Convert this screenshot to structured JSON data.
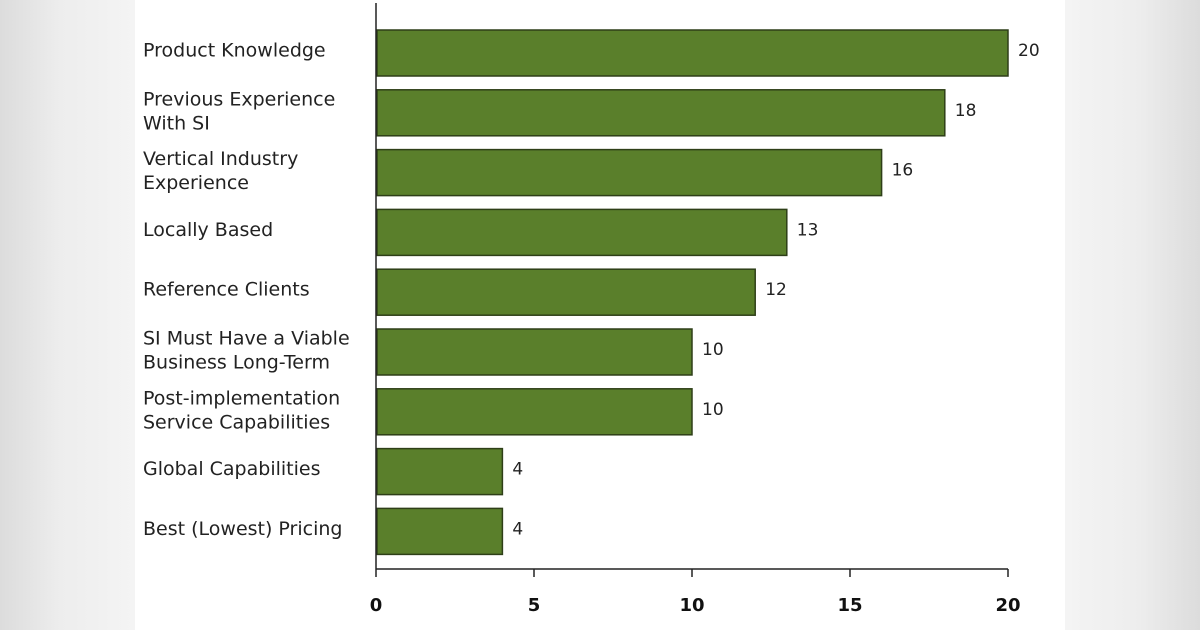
{
  "chart_data": {
    "type": "bar",
    "orientation": "horizontal",
    "title": "",
    "xlabel": "",
    "ylabel": "",
    "categories": [
      [
        "Product Knowledge"
      ],
      [
        "Previous Experience",
        "With SI"
      ],
      [
        "Vertical Industry",
        "Experience"
      ],
      [
        "Locally Based"
      ],
      [
        "Reference Clients"
      ],
      [
        "SI Must Have a Viable",
        "Business Long-Term"
      ],
      [
        "Post-implementation",
        "Service Capabilities"
      ],
      [
        "Global Capabilities"
      ],
      [
        "Best (Lowest) Pricing"
      ]
    ],
    "values": [
      20,
      18,
      16,
      13,
      12,
      10,
      10,
      4,
      4
    ],
    "data_labels": [
      "20",
      "18",
      "16",
      "13",
      "12",
      "10",
      "10",
      "4",
      "4"
    ],
    "xlim": [
      0,
      20
    ],
    "xticks": [
      0,
      5,
      10,
      15,
      20
    ],
    "xtick_labels": [
      "0",
      "5",
      "10",
      "15",
      "20"
    ],
    "bar_color": "#5a7f2b",
    "bar_edge_color": "#2e3f18",
    "grid": false,
    "legend": "none"
  }
}
